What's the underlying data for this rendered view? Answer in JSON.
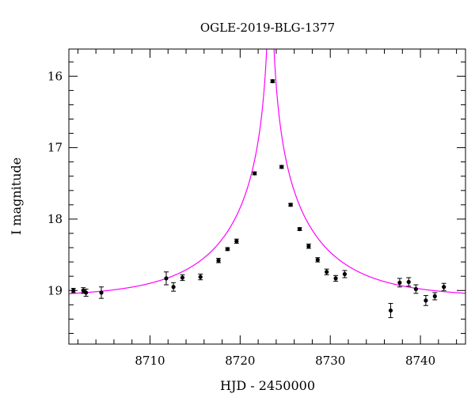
{
  "chart_data": {
    "type": "scatter",
    "title": "OGLE-2019-BLG-1377",
    "xlabel": "HJD - 2450000",
    "ylabel": "I magnitude",
    "xlim": [
      8701,
      8745
    ],
    "ylim": [
      19.75,
      15.62
    ],
    "y_inverted": true,
    "x_ticks": [
      8710,
      8720,
      8730,
      8740
    ],
    "y_ticks": [
      16,
      17,
      18,
      19
    ],
    "grid": false,
    "colors": {
      "model": "#ff00ff",
      "points": "#000000"
    },
    "model_curve": {
      "name": "",
      "t0": 8723.35,
      "tE": 11.0,
      "u0": 0.0025,
      "I_base": 19.1,
      "I_source": 19.2
    },
    "series": [
      {
        "name": "",
        "points": [
          {
            "x": 8701.5,
            "y": 19.0,
            "err": 0.03
          },
          {
            "x": 8702.6,
            "y": 19.0,
            "err": 0.04
          },
          {
            "x": 8702.9,
            "y": 19.03,
            "err": 0.05
          },
          {
            "x": 8704.6,
            "y": 19.03,
            "err": 0.08
          },
          {
            "x": 8711.8,
            "y": 18.83,
            "err": 0.09
          },
          {
            "x": 8712.6,
            "y": 18.95,
            "err": 0.06
          },
          {
            "x": 8713.6,
            "y": 18.82,
            "err": 0.04
          },
          {
            "x": 8715.6,
            "y": 18.81,
            "err": 0.04
          },
          {
            "x": 8717.6,
            "y": 18.58,
            "err": 0.03
          },
          {
            "x": 8718.6,
            "y": 18.42,
            "err": 0.02
          },
          {
            "x": 8719.6,
            "y": 18.31,
            "err": 0.03
          },
          {
            "x": 8721.6,
            "y": 17.36,
            "err": 0.02
          },
          {
            "x": 8723.6,
            "y": 16.07,
            "err": 0.02
          },
          {
            "x": 8724.6,
            "y": 17.27,
            "err": 0.02
          },
          {
            "x": 8725.6,
            "y": 17.8,
            "err": 0.02
          },
          {
            "x": 8726.6,
            "y": 18.14,
            "err": 0.02
          },
          {
            "x": 8727.6,
            "y": 18.38,
            "err": 0.03
          },
          {
            "x": 8728.6,
            "y": 18.57,
            "err": 0.03
          },
          {
            "x": 8729.6,
            "y": 18.74,
            "err": 0.04
          },
          {
            "x": 8730.6,
            "y": 18.83,
            "err": 0.04
          },
          {
            "x": 8731.6,
            "y": 18.77,
            "err": 0.05
          },
          {
            "x": 8736.7,
            "y": 19.28,
            "err": 0.1
          },
          {
            "x": 8737.7,
            "y": 18.89,
            "err": 0.06
          },
          {
            "x": 8738.7,
            "y": 18.88,
            "err": 0.06
          },
          {
            "x": 8739.5,
            "y": 18.98,
            "err": 0.06
          },
          {
            "x": 8740.6,
            "y": 19.14,
            "err": 0.07
          },
          {
            "x": 8741.6,
            "y": 19.08,
            "err": 0.05
          },
          {
            "x": 8742.6,
            "y": 18.95,
            "err": 0.05
          }
        ]
      }
    ]
  }
}
